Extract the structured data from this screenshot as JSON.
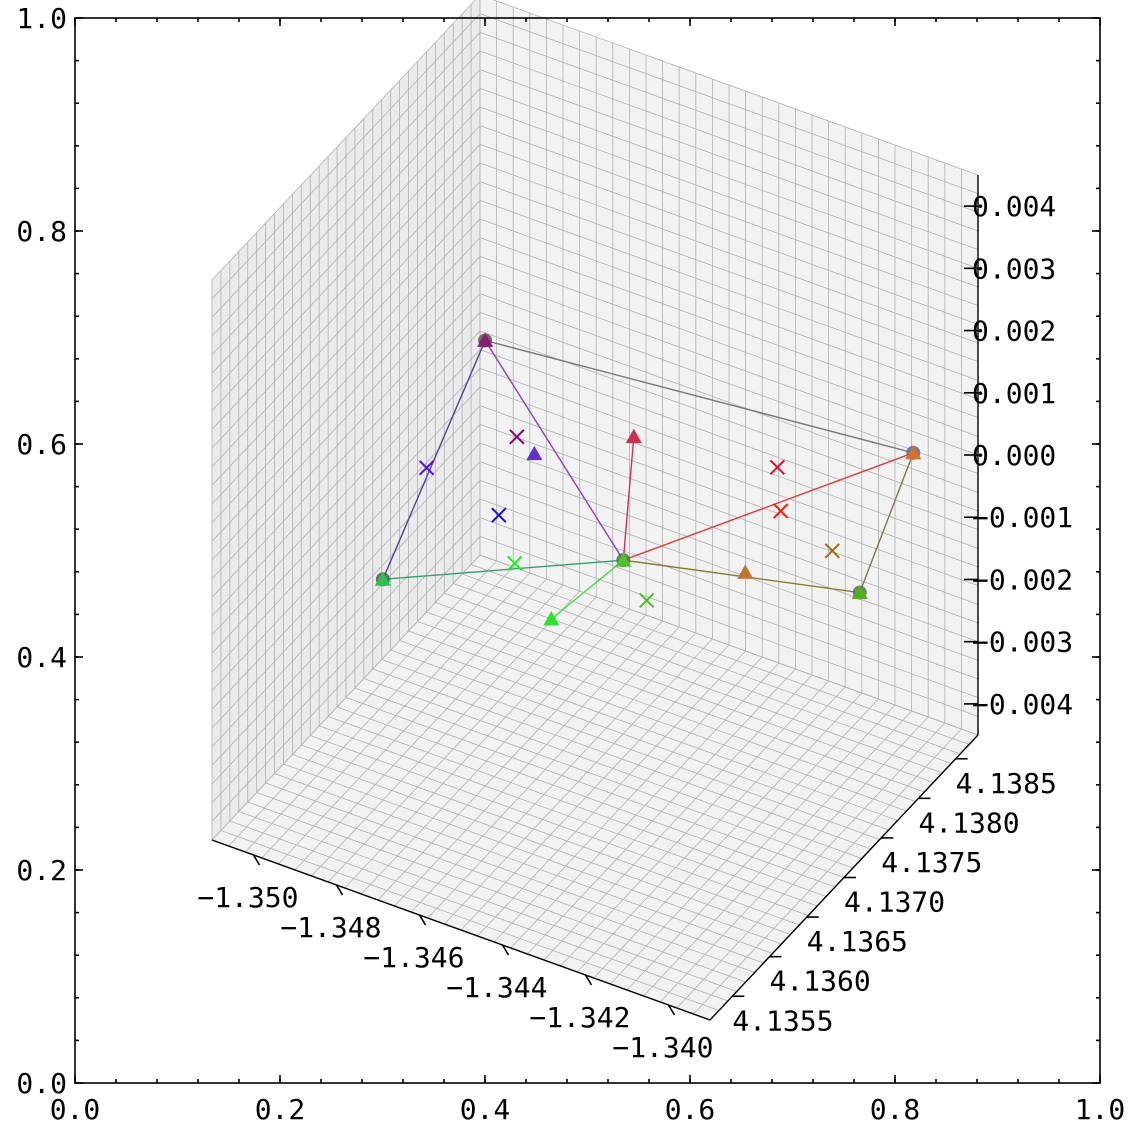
{
  "chart_data": {
    "type": "scatter",
    "subtype": "3d-scatter-with-lines",
    "frame": {
      "x_ticks": [
        "0.0",
        "0.2",
        "0.4",
        "0.6",
        "0.8",
        "1.0"
      ],
      "y_ticks": [
        "0.0",
        "0.2",
        "0.4",
        "0.6",
        "0.8",
        "1.0"
      ]
    },
    "axes3d": {
      "x": {
        "ticks": [
          "−1.350",
          "−1.348",
          "−1.346",
          "−1.344",
          "−1.342",
          "−1.340"
        ],
        "lim": [
          -1.351,
          -1.339
        ]
      },
      "y": {
        "ticks": [
          "4.1355",
          "4.1360",
          "4.1365",
          "4.1370",
          "4.1375",
          "4.1380",
          "4.1385"
        ],
        "lim": [
          4.1352,
          4.1388
        ]
      },
      "z": {
        "ticks": [
          "−0.004",
          "−0.003",
          "−0.002",
          "−0.001",
          "0.000",
          "0.001",
          "0.002",
          "0.003",
          "0.004"
        ],
        "lim": [
          -0.0045,
          0.0045
        ]
      },
      "grid": true,
      "pane_color": "#f2f2f2"
    },
    "lines": [
      {
        "color": "#777777",
        "from": [
          -1.3498,
          4.1382,
          0.0
        ],
        "to": [
          -1.3402,
          4.1386,
          0.0
        ]
      },
      {
        "color": "#e03a3a",
        "from": [
          -1.3436,
          4.1366,
          0.0
        ],
        "to": [
          -1.3402,
          4.1386,
          0.0
        ]
      },
      {
        "color": "#d0305a",
        "from": [
          -1.3436,
          4.1366,
          0.0
        ],
        "to": [
          -1.3455,
          4.1378,
          0.0
        ]
      },
      {
        "color": "#8a3fc0",
        "from": [
          -1.3498,
          4.1382,
          0.0
        ],
        "to": [
          -1.3436,
          4.1366,
          0.0
        ]
      },
      {
        "color": "#8a7a30",
        "from": [
          -1.3436,
          4.1366,
          0.0
        ],
        "to": [
          -1.3388,
          4.1371,
          0.0
        ]
      },
      {
        "color": "#807a40",
        "from": [
          -1.3402,
          4.1386,
          0.0
        ],
        "to": [
          -1.3388,
          4.1371,
          0.0
        ]
      },
      {
        "color": "#55409a",
        "from": [
          -1.3498,
          4.1382,
          0.0
        ],
        "to": [
          -1.3476,
          4.1356,
          0.0
        ]
      },
      {
        "color": "#30a070",
        "from": [
          -1.3476,
          4.1356,
          0.0
        ],
        "to": [
          -1.3436,
          4.1366,
          0.0
        ]
      },
      {
        "color": "#40e040",
        "from": [
          -1.3436,
          4.1366,
          0.0
        ],
        "to": [
          -1.3439,
          4.1358,
          0.0
        ]
      }
    ],
    "circles": [
      {
        "color": "#555555",
        "pos": [
          -1.3498,
          4.1382,
          0.0
        ]
      },
      {
        "color": "#4a6aa0",
        "pos": [
          -1.3402,
          4.1386,
          0.0
        ]
      },
      {
        "color": "#507050",
        "pos": [
          -1.3436,
          4.1366,
          0.0
        ]
      },
      {
        "color": "#5a7050",
        "pos": [
          -1.3388,
          4.1371,
          0.0
        ]
      },
      {
        "color": "#406050",
        "pos": [
          -1.3476,
          4.1356,
          0.0
        ]
      }
    ],
    "triangles": [
      {
        "color": "#d8702a",
        "pos": [
          -1.3402,
          4.1386,
          0.0
        ]
      },
      {
        "color": "#d03050",
        "pos": [
          -1.3455,
          4.1378,
          0.0
        ]
      },
      {
        "color": "#6030d0",
        "pos": [
          -1.347,
          4.1373,
          0.0
        ]
      },
      {
        "color": "#8a2070",
        "pos": [
          -1.3498,
          4.1382,
          0.0
        ]
      },
      {
        "color": "#50c030",
        "pos": [
          -1.3436,
          4.1366,
          0.0
        ]
      },
      {
        "color": "#c07830",
        "pos": [
          -1.3412,
          4.1369,
          0.0
        ]
      },
      {
        "color": "#50b020",
        "pos": [
          -1.3388,
          4.1371,
          0.0
        ]
      },
      {
        "color": "#30c050",
        "pos": [
          -1.3476,
          4.1356,
          0.0
        ]
      },
      {
        "color": "#30e030",
        "pos": [
          -1.3439,
          4.1358,
          0.0
        ]
      }
    ],
    "crosses": [
      {
        "color": "#dd1030",
        "pos": [
          -1.3424,
          4.138,
          0.0
        ]
      },
      {
        "color": "#ee2010",
        "pos": [
          -1.3416,
          4.1376,
          0.0
        ]
      },
      {
        "color": "#a07010",
        "pos": [
          -1.34,
          4.1374,
          0.0
        ]
      },
      {
        "color": "#900070",
        "pos": [
          -1.3476,
          4.1374,
          0.0
        ]
      },
      {
        "color": "#50c020",
        "pos": [
          -1.3425,
          4.1363,
          0.0
        ]
      },
      {
        "color": "#5010e0",
        "pos": [
          -1.3487,
          4.1368,
          0.0
        ]
      },
      {
        "color": "#1010ee",
        "pos": [
          -1.3466,
          4.1366,
          0.0
        ]
      },
      {
        "color": "#20ee20",
        "pos": [
          -1.3455,
          4.1362,
          0.0
        ]
      }
    ]
  }
}
